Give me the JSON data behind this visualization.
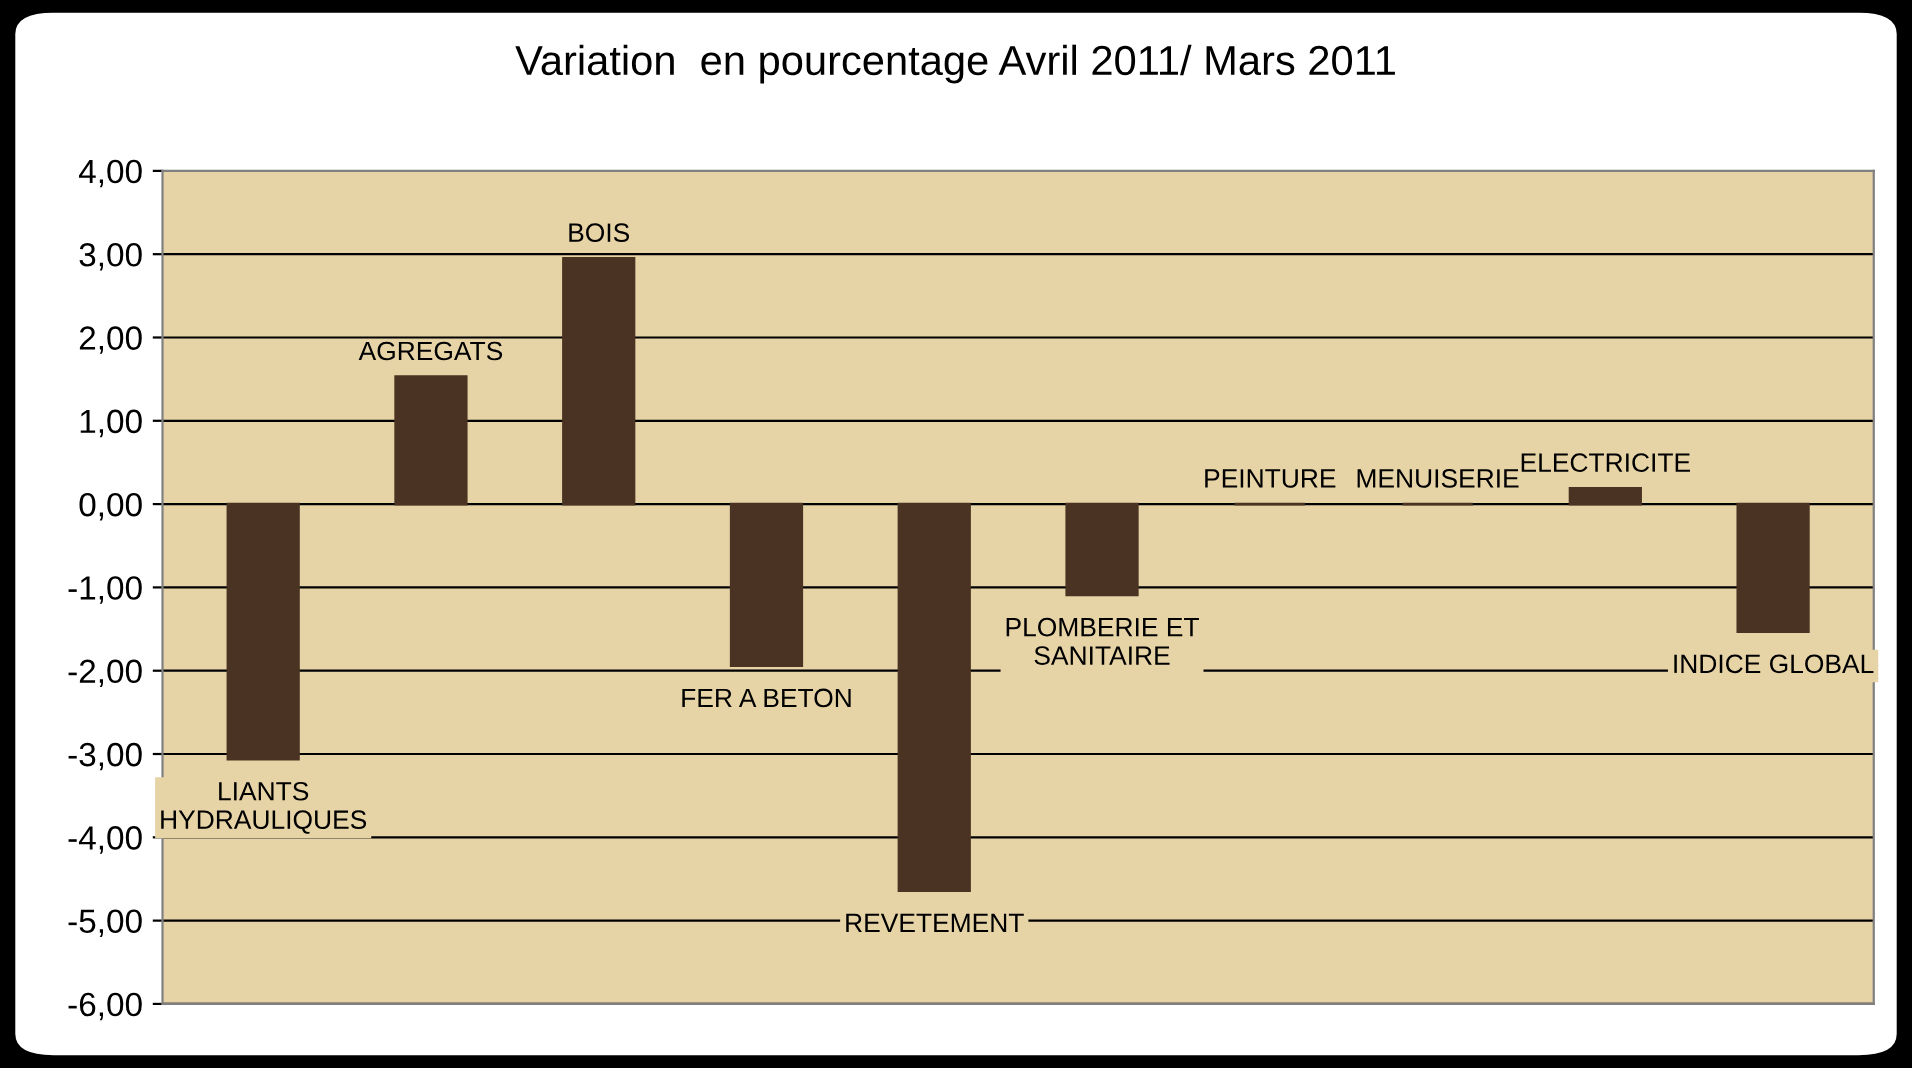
{
  "chart_data": {
    "type": "bar",
    "title": "Variation  en pourcentage Avril 2011/ Mars 2011",
    "categories": [
      "LIANTS\nHYDRAULIQUES",
      "AGREGATS",
      "BOIS",
      "FER A BETON",
      "REVETEMENT",
      "PLOMBERIE ET\nSANITAIRE",
      "PEINTURE",
      "MENUISERIE",
      "ELECTRICITE",
      "INDICE GLOBAL"
    ],
    "values": [
      -3.06,
      1.53,
      2.95,
      -1.94,
      -4.64,
      -1.09,
      0,
      0,
      0.19,
      -1.53
    ],
    "color": "#4a3322",
    "ylim": [
      -6,
      4
    ],
    "yticks": [
      {
        "value": -6,
        "label": "-6,00"
      },
      {
        "value": -5,
        "label": "-5,00"
      },
      {
        "value": -4,
        "label": "-4,00"
      },
      {
        "value": -3,
        "label": "-3,00"
      },
      {
        "value": -2,
        "label": "-2,00"
      },
      {
        "value": -1,
        "label": "-1,00"
      },
      {
        "value": 0,
        "label": "0,00"
      },
      {
        "value": 1,
        "label": "1,00"
      },
      {
        "value": 2,
        "label": "2,00"
      },
      {
        "value": 3,
        "label": "3,00"
      },
      {
        "value": 4,
        "label": "4,00"
      }
    ],
    "grid": "y"
  }
}
